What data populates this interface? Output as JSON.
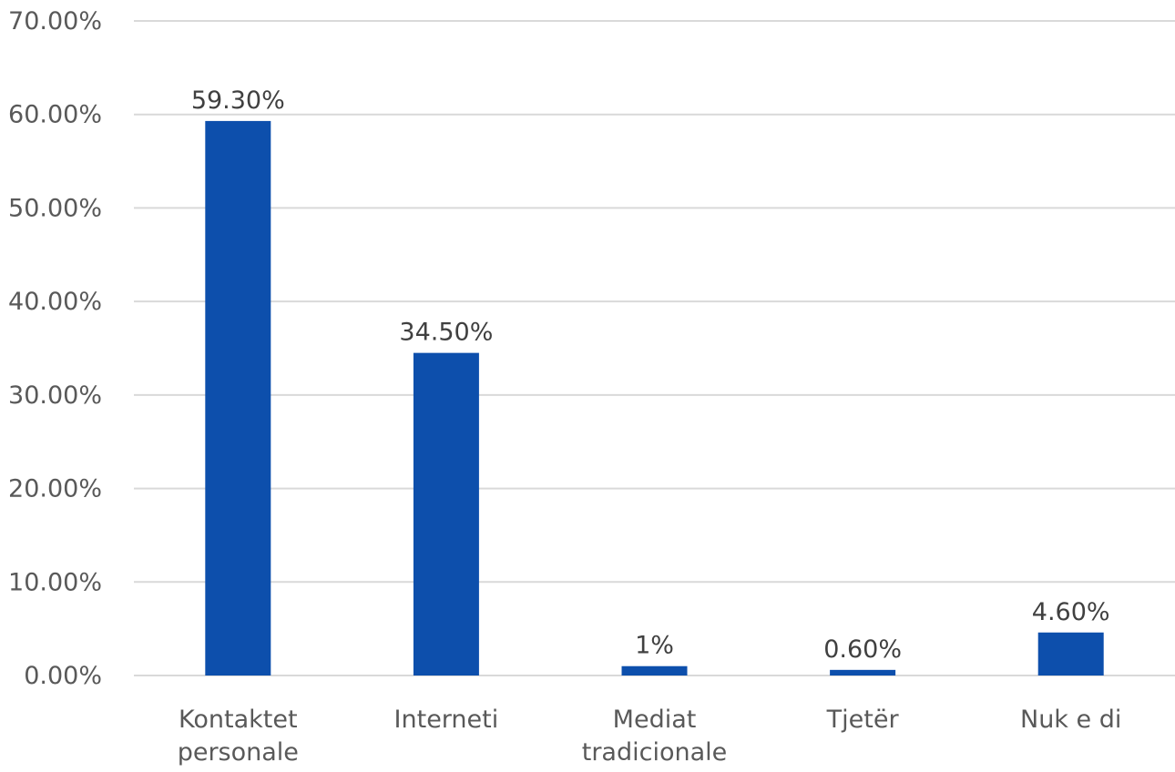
{
  "chart_data": {
    "type": "bar",
    "categories": [
      [
        "Kontaktet",
        "personale"
      ],
      [
        "Interneti"
      ],
      [
        "Mediat",
        "tradicionale"
      ],
      [
        "Tjetër"
      ],
      [
        "Nuk e di"
      ]
    ],
    "values": [
      59.3,
      34.5,
      1,
      0.6,
      4.6
    ],
    "data_labels": [
      "59.30%",
      "34.50%",
      "1%",
      "0.60%",
      "4.60%"
    ],
    "y_ticks": [
      "0.00%",
      "10.00%",
      "20.00%",
      "30.00%",
      "40.00%",
      "50.00%",
      "60.00%",
      "70.00%"
    ],
    "ylim": [
      0,
      70
    ],
    "grid": true,
    "legend": "none",
    "colors": {
      "bar": "#0d4fac",
      "grid": "#d9d9d9",
      "text": "#595959"
    }
  }
}
